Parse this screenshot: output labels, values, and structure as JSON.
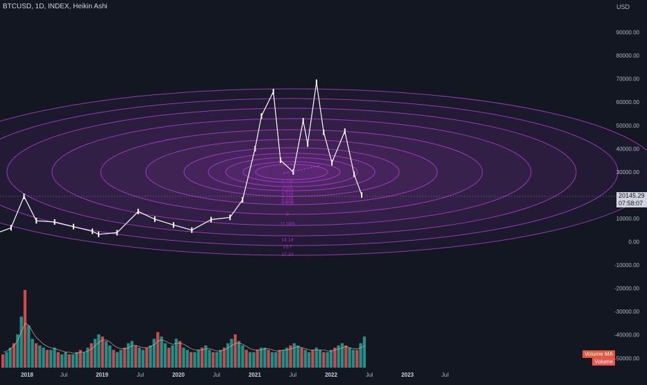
{
  "header": {
    "title": "BTCUSD, 1D, INDEX, Heikin Ashi"
  },
  "price_axis": {
    "currency": "USD",
    "current_price": "20145.29",
    "countdown": "07:58:07"
  },
  "legend": {
    "volume_ma": "Volume MA",
    "volume": "Volume"
  },
  "colors": {
    "background": "#131722",
    "candle": "#ffffff",
    "ellipse": "#b03ed0",
    "fib_label": "#9b2fb5",
    "vol_up": "#26a69a",
    "vol_down": "#ef5350",
    "current_badge": "#d1d4dc"
  },
  "chart_data": {
    "type": "line",
    "title": "",
    "xlabel": "",
    "ylabel": "",
    "ylim": [
      -55000,
      98000
    ],
    "y_ticks": [
      "90000.00",
      "80000.00",
      "70000.00",
      "60000.00",
      "50000.00",
      "40000.00",
      "30000.00",
      "20000.00",
      "10000.00",
      "0.00",
      "-10000.00",
      "-20000.00",
      "-30000.00",
      "-40000.00",
      "-50000.00"
    ],
    "x_ticks": [
      "2018",
      "Jul",
      "2019",
      "Jul",
      "2020",
      "Jul",
      "2021",
      "Jul",
      "2022",
      "Jul",
      "2023",
      "Jul"
    ],
    "series": [
      {
        "x": [
          "2017-08",
          "2017-10",
          "2017-12-17",
          "2018-02",
          "2018-05",
          "2018-08",
          "2018-11",
          "2018-12-15",
          "2019-03",
          "2019-06-26",
          "2019-09",
          "2019-12",
          "2020-03-13",
          "2020-06",
          "2020-09",
          "2020-11",
          "2021-01",
          "2021-02",
          "2021-04-14",
          "2021-05-19",
          "2021-07-20",
          "2021-09-06",
          "2021-09-28",
          "2021-11-10",
          "2021-12",
          "2022-01-24",
          "2022-03-28",
          "2022-05-12",
          "2022-06-18"
        ],
        "y": [
          4000,
          6000,
          19500,
          9000,
          8500,
          6500,
          4500,
          3200,
          3900,
          13000,
          9700,
          7200,
          5000,
          9500,
          10500,
          18000,
          40000,
          54000,
          64500,
          35000,
          30000,
          52000,
          42000,
          68500,
          47000,
          34000,
          47500,
          29000,
          20100
        ]
      }
    ],
    "fib_levels": [
      "2.736",
      "3.14",
      "4.236",
      "4.618",
      "5.236",
      "5.618",
      "6.854",
      "9",
      "11.089",
      "14.14",
      "15.7",
      "17.24"
    ],
    "volume_ylim": [
      0,
      100
    ],
    "volume_series": [
      {
        "name": "Volume",
        "values": [
          12,
          14,
          18,
          22,
          30,
          46,
          70,
          38,
          26,
          22,
          20,
          18,
          16,
          16,
          18,
          14,
          12,
          14,
          12,
          12,
          14,
          16,
          14,
          18,
          22,
          26,
          30,
          28,
          24,
          20,
          16,
          14,
          16,
          18,
          22,
          24,
          20,
          18,
          16,
          18,
          20,
          26,
          32,
          28,
          22,
          18,
          20,
          26,
          24,
          18,
          16,
          14,
          14,
          16,
          18,
          20,
          16,
          14,
          14,
          16,
          18,
          22,
          26,
          30,
          24,
          20,
          16,
          14,
          14,
          16,
          18,
          18,
          16,
          14,
          14,
          16,
          16,
          18,
          20,
          22,
          20,
          18,
          16,
          14,
          16,
          18,
          16,
          14,
          14,
          16,
          18,
          20,
          22,
          20,
          18,
          16,
          16,
          22,
          28
        ]
      },
      {
        "name": "Volume MA",
        "values": [
          14,
          15,
          17,
          20,
          25,
          33,
          40,
          38,
          32,
          27,
          24,
          21,
          19,
          18,
          17,
          16,
          15,
          14,
          14,
          13,
          13,
          14,
          14,
          15,
          17,
          20,
          23,
          25,
          25,
          23,
          20,
          18,
          17,
          17,
          18,
          20,
          20,
          19,
          18,
          18,
          19,
          21,
          24,
          25,
          24,
          22,
          21,
          22,
          22,
          21,
          19,
          17,
          16,
          16,
          16,
          17,
          17,
          16,
          15,
          15,
          16,
          18,
          20,
          22,
          22,
          21,
          19,
          17,
          16,
          16,
          16,
          17,
          17,
          16,
          15,
          15,
          16,
          16,
          17,
          18,
          19,
          18,
          17,
          16,
          16,
          16,
          16,
          16,
          15,
          15,
          16,
          17,
          18,
          19,
          18,
          17,
          17,
          18,
          20
        ]
      }
    ]
  }
}
